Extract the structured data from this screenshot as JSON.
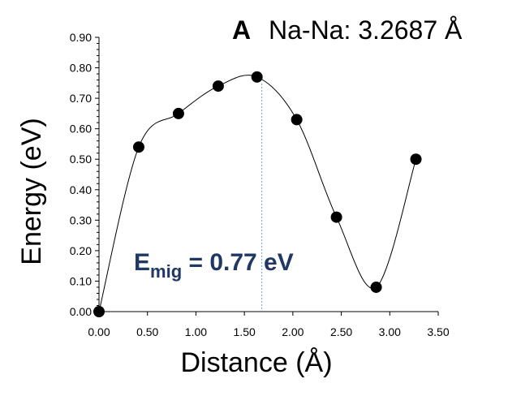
{
  "chart_data": {
    "type": "scatter",
    "panel_label": "A",
    "title": "Na-Na: 3.2687 Å",
    "xlabel": "Distance (Å)",
    "ylabel": "Energy (eV)",
    "xlim": [
      0,
      3.5
    ],
    "ylim": [
      0,
      0.9
    ],
    "x_ticks": [
      "0.00",
      "0.50",
      "1.00",
      "1.50",
      "2.00",
      "2.50",
      "3.00",
      "3.50"
    ],
    "y_ticks": [
      "0.00",
      "0.10",
      "0.20",
      "0.30",
      "0.40",
      "0.50",
      "0.60",
      "0.70",
      "0.80",
      "0.90"
    ],
    "grid": false,
    "series": [
      {
        "x": [
          0.0,
          0.41,
          0.82,
          1.23,
          1.63,
          2.04,
          2.45,
          2.86,
          3.27
        ],
        "y": [
          0.0,
          0.54,
          0.65,
          0.74,
          0.77,
          0.63,
          0.31,
          0.08,
          0.5
        ],
        "marker": "circle",
        "smooth_line": true
      }
    ],
    "annotation": {
      "main": "E",
      "subscript": "mig",
      "value": " = 0.77 eV",
      "dashed_marker_x": 1.68,
      "color": "#1f3864",
      "dash_color": "#5b9bd5"
    }
  }
}
